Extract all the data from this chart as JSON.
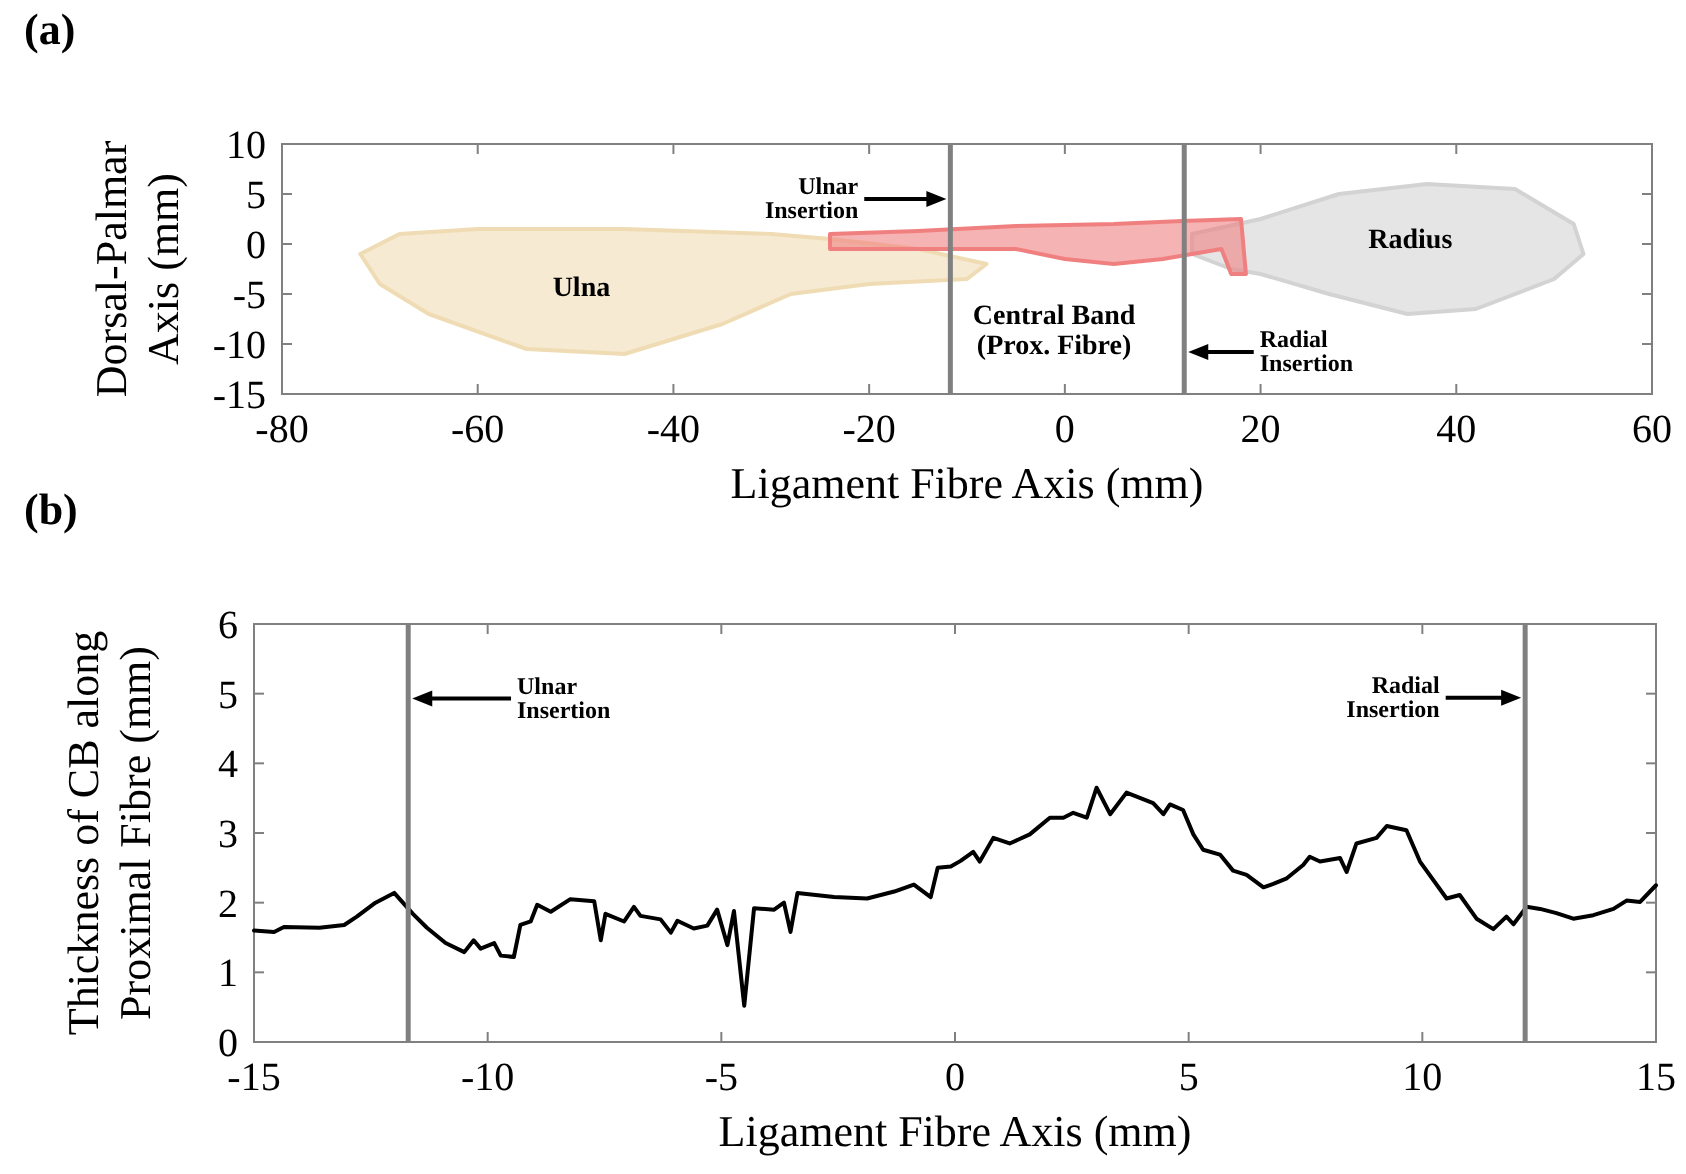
{
  "chart_data": [
    {
      "type": "area",
      "title": "(a)",
      "xlabel": "Ligament Fibre Axis (mm)",
      "ylabel": "Dorsal-Palmar\nAxis (mm)",
      "xlim": [
        -80,
        60
      ],
      "ylim": [
        -15,
        10
      ],
      "xticks": [
        -80,
        -60,
        -40,
        -20,
        0,
        20,
        40,
        60
      ],
      "yticks": [
        -15,
        -10,
        -5,
        0,
        5,
        10
      ],
      "series": [
        {
          "color": "#f0dcb4",
          "x": [
            -72,
            -68,
            -60,
            -45,
            -30,
            -24,
            -15,
            -8,
            -10,
            -20,
            -28,
            -35,
            -45,
            -55,
            -65,
            -70,
            -72
          ],
          "values": [
            -1,
            1,
            1.5,
            1.5,
            1,
            0.5,
            -0.5,
            -2,
            -3.5,
            -4,
            -5,
            -8,
            -11,
            -10.5,
            -7,
            -4,
            -1
          ]
        },
        {
          "color": "#d3d3d3",
          "x": [
            13,
            20,
            28,
            37,
            46,
            52,
            53,
            50,
            42,
            35,
            27,
            20,
            17,
            13,
            13
          ],
          "values": [
            1,
            2.5,
            5,
            6,
            5.5,
            2,
            -1,
            -3.5,
            -6.5,
            -7,
            -5,
            -3,
            -2.5,
            -1,
            1
          ]
        },
        {
          "color": "#f08080",
          "x": [
            -24,
            -15,
            -5,
            5,
            12,
            18,
            18.5,
            17,
            16,
            10,
            5,
            0,
            -5,
            -15,
            -24,
            -24
          ],
          "values": [
            1,
            1.3,
            1.8,
            2,
            2.3,
            2.5,
            -3,
            -3,
            -0.5,
            -1.5,
            -2,
            -1.5,
            -0.5,
            -0.5,
            -0.5,
            1
          ]
        }
      ],
      "ref_lines": [
        {
          "axis": "x",
          "value": -11.7,
          "color": "#808080"
        },
        {
          "axis": "x",
          "value": 12.2,
          "color": "#808080"
        }
      ],
      "annotations": [
        "Ulna",
        "Radius",
        "Central Band\n(Prox. Fibre)",
        "Ulnar\nInsertion",
        "Radial\nInsertion"
      ]
    },
    {
      "type": "line",
      "title": "(b)",
      "xlabel": "Ligament Fibre Axis (mm)",
      "ylabel": "Thickness of CB along\nProximal Fibre (mm)",
      "xlim": [
        -15,
        15
      ],
      "ylim": [
        0,
        6
      ],
      "xticks": [
        -15,
        -10,
        -5,
        0,
        5,
        10,
        15
      ],
      "yticks": [
        0,
        1,
        2,
        3,
        4,
        5,
        6
      ],
      "series": [
        {
          "color": "#000000",
          "x": [
            -15,
            -14.57,
            -14.36,
            -13.6,
            -13.07,
            -12.8,
            -12.4,
            -12.0,
            -11.8,
            -11.6,
            -11.3,
            -10.9,
            -10.5,
            -10.3,
            -10.15,
            -9.86,
            -9.72,
            -9.44,
            -9.3,
            -9.08,
            -8.94,
            -8.65,
            -8.23,
            -7.72,
            -7.58,
            -7.48,
            -7.08,
            -6.87,
            -6.73,
            -6.3,
            -6.08,
            -5.94,
            -5.59,
            -5.3,
            -5.09,
            -4.87,
            -4.73,
            -4.51,
            -4.3,
            -3.87,
            -3.66,
            -3.52,
            -3.37,
            -2.59,
            -1.88,
            -1.3,
            -0.88,
            -0.52,
            -0.37,
            -0.09,
            0.12,
            0.39,
            0.53,
            0.82,
            1.17,
            1.6,
            2.03,
            2.32,
            2.53,
            2.82,
            3.03,
            3.32,
            3.67,
            4.24,
            4.46,
            4.6,
            4.88,
            5.1,
            5.31,
            5.67,
            5.95,
            6.24,
            6.6,
            6.81,
            7.1,
            7.45,
            7.59,
            7.81,
            8.24,
            8.38,
            8.59,
            9.02,
            9.24,
            9.66,
            9.95,
            10.52,
            10.8,
            11.16,
            11.52,
            11.8,
            11.95,
            12.23,
            12.52,
            12.87,
            13.23,
            13.66,
            14.09,
            14.37,
            14.66,
            15
          ],
          "values": [
            1.6,
            1.58,
            1.65,
            1.64,
            1.68,
            1.8,
            2.0,
            2.14,
            1.99,
            1.84,
            1.64,
            1.42,
            1.29,
            1.46,
            1.34,
            1.42,
            1.24,
            1.22,
            1.68,
            1.73,
            1.97,
            1.87,
            2.05,
            2.02,
            1.46,
            1.84,
            1.73,
            1.94,
            1.81,
            1.76,
            1.57,
            1.74,
            1.63,
            1.67,
            1.9,
            1.39,
            1.88,
            0.52,
            1.92,
            1.9,
            2.0,
            1.58,
            2.14,
            2.08,
            2.06,
            2.16,
            2.26,
            2.08,
            2.5,
            2.52,
            2.6,
            2.73,
            2.59,
            2.93,
            2.85,
            2.98,
            3.22,
            3.22,
            3.29,
            3.22,
            3.65,
            3.27,
            3.58,
            3.43,
            3.27,
            3.41,
            3.33,
            2.98,
            2.76,
            2.69,
            2.46,
            2.4,
            2.22,
            2.27,
            2.35,
            2.54,
            2.66,
            2.59,
            2.64,
            2.44,
            2.85,
            2.93,
            3.1,
            3.04,
            2.59,
            2.06,
            2.11,
            1.77,
            1.62,
            1.8,
            1.69,
            1.94,
            1.91,
            1.85,
            1.77,
            1.82,
            1.91,
            2.03,
            2.01,
            2.25
          ]
        }
      ],
      "ref_lines": [
        {
          "axis": "x",
          "value": -11.7,
          "color": "#808080"
        },
        {
          "axis": "x",
          "value": 12.2,
          "color": "#808080"
        }
      ],
      "annotations": [
        "Ulnar\nInsertion",
        "Radial\nInsertion"
      ]
    }
  ]
}
